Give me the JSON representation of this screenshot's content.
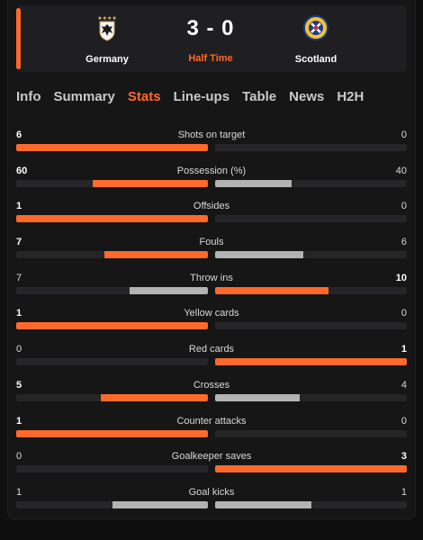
{
  "match": {
    "home_team": "Germany",
    "away_team": "Scotland",
    "score": "3 - 0",
    "status": "Half Time",
    "home_crest_icon": "germany-crest-icon",
    "away_crest_icon": "scotland-crest-icon"
  },
  "tabs": [
    {
      "label": "Info",
      "active": false
    },
    {
      "label": "Summary",
      "active": false
    },
    {
      "label": "Stats",
      "active": true
    },
    {
      "label": "Line-ups",
      "active": false
    },
    {
      "label": "Table",
      "active": false
    },
    {
      "label": "News",
      "active": false
    },
    {
      "label": "H2H",
      "active": false
    }
  ],
  "colors": {
    "accent": "#ff6a2b",
    "leader_bar": "#ff6a2b",
    "trailer_bar": "#b3b3b3",
    "track": "#262628"
  },
  "stats": [
    {
      "label": "Shots on target",
      "home": "6",
      "away": "0",
      "home_share": 1.0,
      "away_share": 0.0
    },
    {
      "label": "Possession (%)",
      "home": "60",
      "away": "40",
      "home_share": 0.6,
      "away_share": 0.4
    },
    {
      "label": "Offsides",
      "home": "1",
      "away": "0",
      "home_share": 1.0,
      "away_share": 0.0
    },
    {
      "label": "Fouls",
      "home": "7",
      "away": "6",
      "home_share": 0.54,
      "away_share": 0.46
    },
    {
      "label": "Throw ins",
      "home": "7",
      "away": "10",
      "home_share": 0.41,
      "away_share": 0.59
    },
    {
      "label": "Yellow cards",
      "home": "1",
      "away": "0",
      "home_share": 1.0,
      "away_share": 0.0
    },
    {
      "label": "Red cards",
      "home": "0",
      "away": "1",
      "home_share": 0.0,
      "away_share": 1.0
    },
    {
      "label": "Crosses",
      "home": "5",
      "away": "4",
      "home_share": 0.56,
      "away_share": 0.44
    },
    {
      "label": "Counter attacks",
      "home": "1",
      "away": "0",
      "home_share": 1.0,
      "away_share": 0.0
    },
    {
      "label": "Goalkeeper saves",
      "home": "0",
      "away": "3",
      "home_share": 0.0,
      "away_share": 1.0
    },
    {
      "label": "Goal kicks",
      "home": "1",
      "away": "1",
      "home_share": 0.5,
      "away_share": 0.5
    }
  ]
}
